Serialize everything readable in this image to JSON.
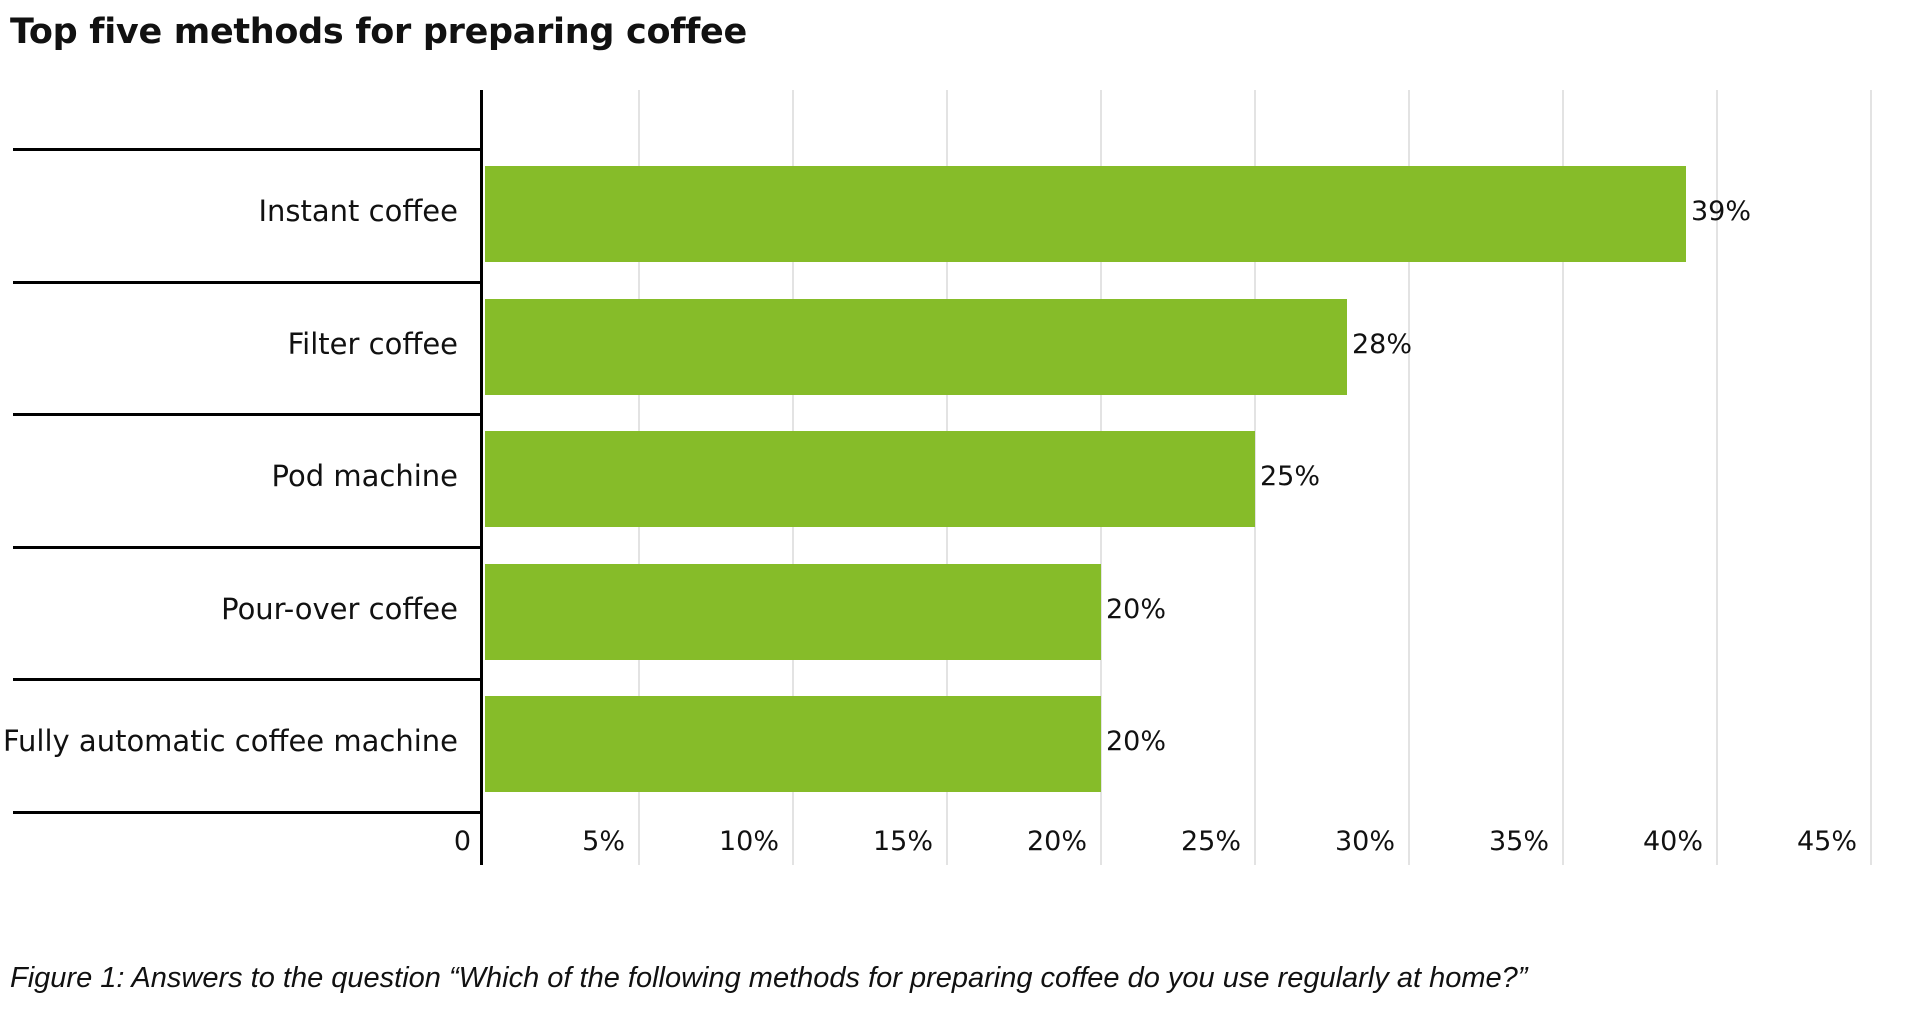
{
  "title": "Top five methods for preparing coffee",
  "caption": "Figure 1: Answers to the question “Which of the following methods for preparing coffee do you use regularly at home?”",
  "colors": {
    "bar": "#86bc29",
    "grid": "#e3e3e3",
    "axis": "#000000"
  },
  "axis": {
    "ticks": [
      "0",
      "5%",
      "10%",
      "15%",
      "20%",
      "25%",
      "30%",
      "35%",
      "40%",
      "45%"
    ]
  },
  "bars": [
    {
      "label": "Instant coffee",
      "value": 39,
      "value_label": "39%"
    },
    {
      "label": "Filter coffee",
      "value": 28,
      "value_label": "28%"
    },
    {
      "label": "Pod machine",
      "value": 25,
      "value_label": "25%"
    },
    {
      "label": "Pour-over coffee",
      "value": 20,
      "value_label": "20%"
    },
    {
      "label": "Fully automatic coffee machine",
      "value": 20,
      "value_label": "20%"
    }
  ],
  "chart_data": {
    "type": "bar",
    "orientation": "horizontal",
    "title": "Top five methods for preparing coffee",
    "categories": [
      "Instant coffee",
      "Filter coffee",
      "Pod machine",
      "Pour-over coffee",
      "Fully automatic coffee machine"
    ],
    "values": [
      39,
      28,
      25,
      20,
      20
    ],
    "value_labels": [
      "39%",
      "28%",
      "25%",
      "20%",
      "20%"
    ],
    "xlabel": "",
    "ylabel": "",
    "xlim": [
      0,
      45
    ],
    "xticks": [
      "0",
      "5%",
      "10%",
      "15%",
      "20%",
      "25%",
      "30%",
      "35%",
      "40%",
      "45%"
    ],
    "grid": true,
    "legend": null,
    "caption": "Figure 1: Answers to the question “Which of the following methods for preparing coffee do you use regularly at home?”"
  }
}
